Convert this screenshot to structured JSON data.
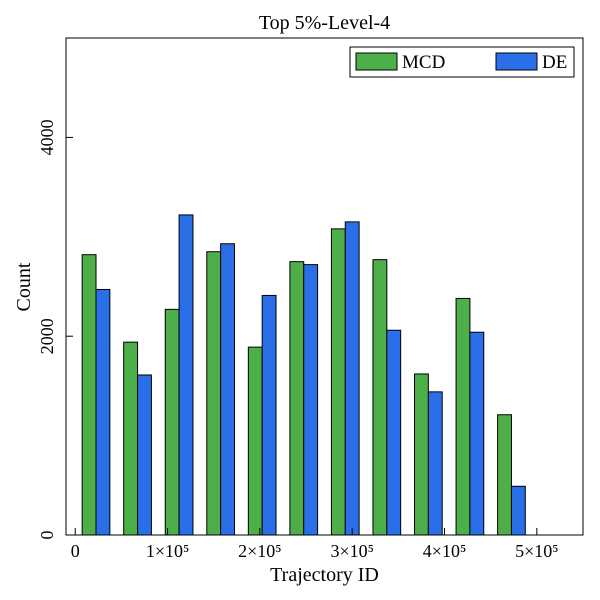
{
  "chart_data": {
    "type": "bar",
    "title": "Top 5%-Level-4",
    "xlabel": "Trajectory ID",
    "ylabel": "Count",
    "xlim": [
      -10000,
      550000
    ],
    "ylim": [
      0,
      5000
    ],
    "bin_width": 45000,
    "bin_centers": [
      22500,
      67500,
      112500,
      157500,
      202500,
      247500,
      292500,
      337500,
      382500,
      427500,
      472500
    ],
    "x_ticks": [
      {
        "value": 0,
        "label": "0"
      },
      {
        "value": 100000,
        "label": "1×10⁵"
      },
      {
        "value": 200000,
        "label": "2×10⁵"
      },
      {
        "value": 300000,
        "label": "3×10⁵"
      },
      {
        "value": 400000,
        "label": "4×10⁵"
      },
      {
        "value": 500000,
        "label": "5×10⁵"
      }
    ],
    "y_ticks": [
      {
        "value": 0,
        "label": "0"
      },
      {
        "value": 2000,
        "label": "2000"
      },
      {
        "value": 4000,
        "label": "4000"
      }
    ],
    "series": [
      {
        "name": "MCD",
        "color": "#4daf4a",
        "values": [
          2820,
          1940,
          2270,
          2850,
          1890,
          2750,
          3080,
          2770,
          1620,
          2380,
          1210
        ]
      },
      {
        "name": "DE",
        "color": "#2b6fe8",
        "values": [
          2470,
          1610,
          3220,
          2930,
          2410,
          2720,
          3150,
          2060,
          1440,
          2040,
          490
        ]
      }
    ],
    "legend": {
      "position": "top-right",
      "columns": 2
    },
    "grid": false
  }
}
